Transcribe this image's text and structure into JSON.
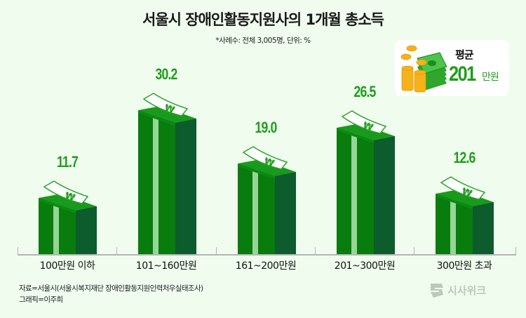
{
  "header": {
    "title": "서울시 장애인활동지원사의 1개월 총소득",
    "subtitle": "*사례수: 전체 3,005명, 단위: %"
  },
  "average_box": {
    "label": "평균",
    "value": "201",
    "unit": "만원",
    "icon": "money-stack-coins-icon"
  },
  "chart_data": {
    "type": "bar",
    "title": "서울시 장애인활동지원사의 1개월 총소득",
    "subtitle": "*사례수: 전체 3,005명, 단위: %",
    "xlabel": "",
    "ylabel": "%",
    "categories": [
      "100만원 이하",
      "101~160만원",
      "161~200만원",
      "201~300만원",
      "300만원 초과"
    ],
    "values": [
      11.7,
      30.2,
      19.0,
      26.5,
      12.6
    ],
    "value_labels": [
      "11.7",
      "30.2",
      "19.0",
      "26.5",
      "12.6"
    ],
    "ylim": [
      0,
      35
    ],
    "grid": false,
    "legend": null,
    "annotation": "평균 201만원",
    "colors": {
      "front": "#087c0c",
      "side": "#0c5c2e",
      "stripe": "#95d596",
      "value_label": "#1f9d1c"
    }
  },
  "footer": {
    "source": "자료=서울시(서울시복지재단 장애인활동지원인력처우실태조사)",
    "credit": "그래픽=이주희",
    "watermark": "시사위크"
  }
}
